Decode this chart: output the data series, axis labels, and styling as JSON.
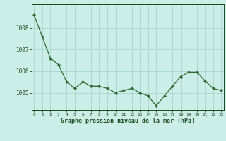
{
  "x": [
    0,
    1,
    2,
    3,
    4,
    5,
    6,
    7,
    8,
    9,
    10,
    11,
    12,
    13,
    14,
    15,
    16,
    17,
    18,
    19,
    20,
    21,
    22,
    23
  ],
  "y": [
    1008.6,
    1007.6,
    1006.6,
    1006.3,
    1005.5,
    1005.2,
    1005.5,
    1005.3,
    1005.3,
    1005.2,
    1005.0,
    1005.1,
    1005.2,
    1005.0,
    1004.85,
    1004.4,
    1004.85,
    1005.3,
    1005.75,
    1005.95,
    1005.95,
    1005.55,
    1005.2,
    1005.1
  ],
  "line_color": "#2d6a2d",
  "marker_color": "#2d6a2d",
  "bg_color": "#cceee8",
  "grid_color": "#aad4ce",
  "xlabel": "Graphe pression niveau de la mer (hPa)",
  "xlabel_color": "#1a4a1a",
  "tick_color": "#1a4a1a",
  "ylim": [
    1004.2,
    1009.1
  ],
  "yticks": [
    1005,
    1006,
    1007,
    1008
  ],
  "xticks": [
    0,
    1,
    2,
    3,
    4,
    5,
    6,
    7,
    8,
    9,
    10,
    11,
    12,
    13,
    14,
    15,
    16,
    17,
    18,
    19,
    20,
    21,
    22,
    23
  ],
  "xlim": [
    -0.3,
    23.3
  ]
}
